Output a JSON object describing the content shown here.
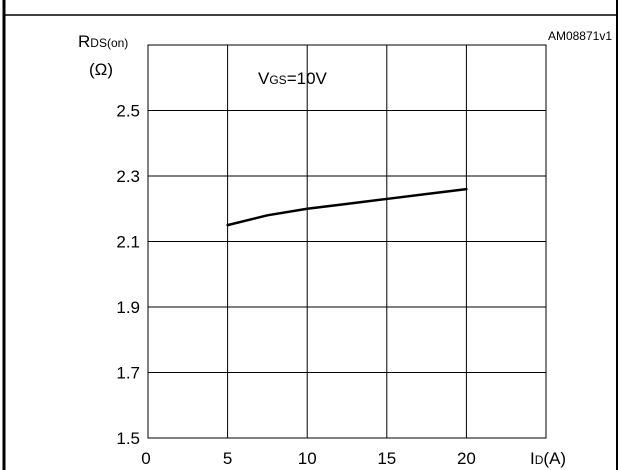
{
  "document_code": "AM08871v1",
  "chart_data": {
    "type": "line",
    "ylabel": {
      "symbol": "R",
      "subscript": "DS(on)",
      "unit": "(Ω)"
    },
    "xlabel": {
      "symbol": "I",
      "subscript": "D",
      "unit": "(A)"
    },
    "annotation": {
      "symbol": "V",
      "subscript": "GS",
      "value": "=10V"
    },
    "xlim": [
      0,
      25
    ],
    "ylim": [
      1.5,
      2.7
    ],
    "x_ticks": [
      "0",
      "5",
      "10",
      "15",
      "20"
    ],
    "y_ticks": [
      "1.5",
      "1.7",
      "1.9",
      "2.1",
      "2.3",
      "2.5"
    ],
    "grid": true,
    "series": [
      {
        "color": "#000000",
        "points": [
          [
            5,
            2.15
          ],
          [
            7.5,
            2.18
          ],
          [
            10,
            2.2
          ],
          [
            12.5,
            2.215
          ],
          [
            15,
            2.23
          ],
          [
            17.5,
            2.245
          ],
          [
            20,
            2.26
          ]
        ]
      }
    ]
  }
}
